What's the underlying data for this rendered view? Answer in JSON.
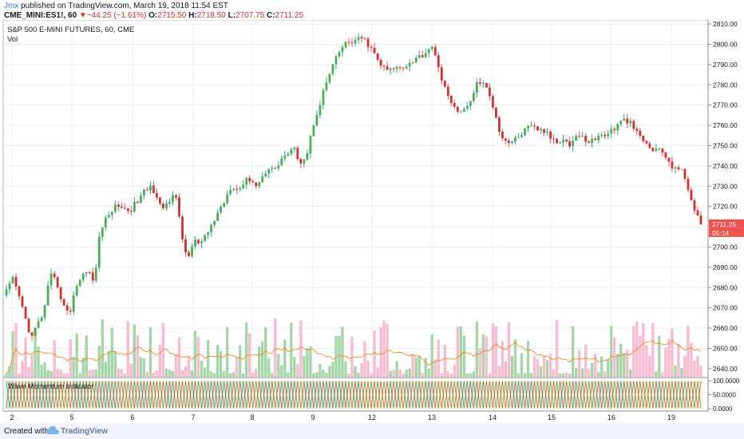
{
  "header": {
    "user": "Jmx",
    "published": "published on TradingView.com, March 19, 2018 11:54 EST",
    "symbol": "CME_MINI:ES1!, 60",
    "change_arrow": "▼",
    "change": "−44.25 (−1.61%)",
    "o_label": "O:",
    "o_value": "2715.50",
    "h_label": "H:",
    "h_value": "2718.50",
    "l_label": "L:",
    "l_value": "2707.75",
    "c_label": "C:",
    "c_value": "2711.25"
  },
  "footer": {
    "created_with": "Created with",
    "brand": "TradingView",
    "logo_icon": "tradingview-cloud-icon"
  },
  "colors": {
    "up": "#26a69a",
    "up_body": "#4caf50",
    "down": "#ef5350",
    "down_body": "#d32f2f",
    "vol_up": "#a5d6a7",
    "vol_down": "#f8bbd0",
    "vol_ma": "#f57c00",
    "grid": "#e9edf3",
    "axis_text": "#131722",
    "wave_green": "#1b8a2e",
    "wave_red": "#c62828"
  },
  "chart_data": [
    {
      "type": "candlestick",
      "title": "S&P 500 E-MINI FUTURES, 60, CME",
      "volume_label": "Vol",
      "ylim": [
        2636,
        2812
      ],
      "y_ticks": [
        2640,
        2650,
        2660,
        2670,
        2680,
        2690,
        2700,
        2710,
        2720,
        2730,
        2740,
        2750,
        2760,
        2770,
        2780,
        2790,
        2800,
        2810
      ],
      "x_ticks": [
        "2",
        "5",
        "6",
        "7",
        "8",
        "9",
        "12",
        "13",
        "14",
        "15",
        "16",
        "19"
      ],
      "last_price": "2711.25",
      "countdown": "05:14",
      "grid": true,
      "close_path": [
        2678,
        2684,
        2676,
        2665,
        2655,
        2662,
        2668,
        2686,
        2683,
        2672,
        2666,
        2680,
        2685,
        2690,
        2681,
        2709,
        2714,
        2719,
        2721,
        2718,
        2719,
        2723,
        2727,
        2730,
        2726,
        2718,
        2722,
        2728,
        2705,
        2694,
        2703,
        2701,
        2706,
        2712,
        2718,
        2724,
        2731,
        2728,
        2732,
        2734,
        2730,
        2735,
        2740,
        2738,
        2744,
        2746,
        2748,
        2742,
        2745,
        2760,
        2770,
        2780,
        2788,
        2795,
        2800,
        2801,
        2802,
        2803,
        2799,
        2794,
        2789,
        2787,
        2788,
        2789,
        2790,
        2792,
        2794,
        2796,
        2800,
        2788,
        2780,
        2770,
        2768,
        2767,
        2770,
        2780,
        2782,
        2776,
        2768,
        2755,
        2752,
        2752,
        2755,
        2758,
        2759,
        2758,
        2757,
        2754,
        2752,
        2754,
        2750,
        2755,
        2754,
        2752,
        2753,
        2755,
        2756,
        2758,
        2761,
        2763,
        2760,
        2755,
        2752,
        2748,
        2748,
        2747,
        2740,
        2740,
        2737,
        2728,
        2719,
        2711.25
      ],
      "volume_panel": {
        "label": "Vol",
        "ma_series": "volume moving average"
      }
    },
    {
      "type": "oscillator",
      "title": "Wave Momentum Indicator",
      "ylim": [
        0,
        100
      ],
      "y_ticks": [
        "100.0000",
        "50.0000",
        "0.0000"
      ],
      "signal": "Wave Momentum"
    }
  ]
}
